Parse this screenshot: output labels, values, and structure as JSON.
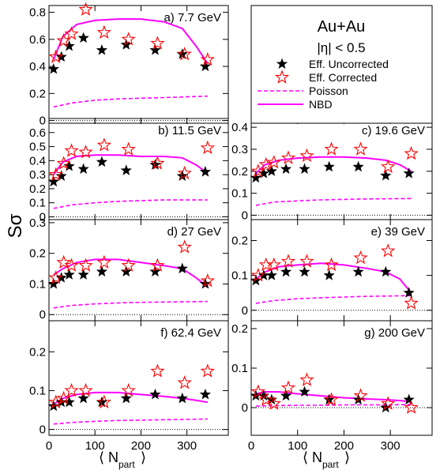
{
  "figure": {
    "ylabel": "Sσ",
    "xlabel_main": "⟨ N",
    "xlabel_sub": "part",
    "xlabel_close": "⟩",
    "legend": {
      "title": "Au+Au",
      "subtitle": "|η| < 0.5",
      "entries": [
        {
          "label": "Eff. Uncorrected",
          "symbol": "star-filled",
          "color": "#000000"
        },
        {
          "label": "Eff. Corrected",
          "symbol": "star-open",
          "color": "#ff0000"
        },
        {
          "label": "Poisson",
          "symbol": "dashed-line",
          "color": "#ff00ff"
        },
        {
          "label": "NBD",
          "symbol": "solid-line",
          "color": "#ff00ff"
        }
      ]
    },
    "colors": {
      "uncorrected": "#000000",
      "corrected": "#ff0000",
      "poisson": "#ff00ff",
      "nbd": "#ff00ff",
      "zero_line": "#000000"
    }
  },
  "chart_data": [
    {
      "type": "scatter",
      "label": "a) 7.7 GeV",
      "xlim": [
        0,
        390
      ],
      "ylim": [
        -0.02,
        0.85
      ],
      "yticks": [
        0,
        0.2,
        0.4,
        0.6,
        0.8
      ],
      "ytick_labels": [
        "0",
        "0.2",
        "0.4",
        "0.6",
        "0.8"
      ],
      "xticks": [
        0,
        100,
        200,
        300
      ],
      "xtick_labels": [],
      "series": [
        {
          "name": "Eff. Uncorrected",
          "x": [
            10,
            27,
            44,
            75,
            115,
            168,
            231,
            290,
            340
          ],
          "y": [
            0.38,
            0.47,
            0.55,
            0.61,
            0.52,
            0.56,
            0.52,
            0.49,
            0.4
          ]
        },
        {
          "name": "Eff. Corrected",
          "x": [
            15,
            32,
            49,
            80,
            120,
            173,
            236,
            295,
            345
          ],
          "y": [
            0.47,
            0.59,
            0.64,
            0.82,
            0.65,
            0.6,
            0.57,
            0.49,
            0.45
          ]
        },
        {
          "name": "Poisson",
          "x": [
            10,
            50,
            100,
            150,
            200,
            250,
            300,
            345
          ],
          "y": [
            0.1,
            0.13,
            0.15,
            0.16,
            0.165,
            0.17,
            0.175,
            0.18
          ]
        },
        {
          "name": "NBD",
          "x": [
            10,
            30,
            60,
            100,
            150,
            200,
            250,
            290,
            320,
            345
          ],
          "y": [
            0.45,
            0.62,
            0.71,
            0.74,
            0.75,
            0.75,
            0.73,
            0.68,
            0.55,
            0.42
          ]
        }
      ]
    },
    {
      "type": "scatter",
      "label": "b) 11.5 GeV",
      "xlim": [
        0,
        390
      ],
      "ylim": [
        -0.02,
        0.7
      ],
      "yticks": [
        0,
        0.1,
        0.2,
        0.3,
        0.4,
        0.5,
        0.6
      ],
      "ytick_labels": [
        "0",
        "0.1",
        "0.2",
        "0.3",
        "0.4",
        "0.5",
        "0.6"
      ],
      "xticks": [
        0,
        100,
        200,
        300
      ],
      "xtick_labels": [],
      "series": [
        {
          "name": "Eff. Uncorrected",
          "x": [
            10,
            27,
            44,
            75,
            115,
            168,
            231,
            290,
            340
          ],
          "y": [
            0.25,
            0.29,
            0.36,
            0.34,
            0.39,
            0.33,
            0.37,
            0.29,
            0.32
          ]
        },
        {
          "name": "Eff. Corrected",
          "x": [
            15,
            32,
            49,
            80,
            120,
            173,
            236,
            295,
            345
          ],
          "y": [
            0.3,
            0.38,
            0.47,
            0.46,
            0.51,
            0.48,
            0.38,
            0.31,
            0.49
          ]
        },
        {
          "name": "Poisson",
          "x": [
            10,
            50,
            100,
            150,
            200,
            250,
            300,
            345
          ],
          "y": [
            0.06,
            0.085,
            0.1,
            0.11,
            0.115,
            0.12,
            0.12,
            0.12
          ]
        },
        {
          "name": "NBD",
          "x": [
            10,
            30,
            60,
            100,
            150,
            200,
            250,
            290,
            320,
            345
          ],
          "y": [
            0.3,
            0.39,
            0.43,
            0.44,
            0.44,
            0.43,
            0.43,
            0.42,
            0.37,
            0.31
          ]
        }
      ]
    },
    {
      "type": "scatter",
      "label": "c) 19.6 GeV",
      "xlim": [
        0,
        390
      ],
      "ylim": [
        -0.02,
        0.44
      ],
      "yticks": [
        0,
        0.1,
        0.2,
        0.3,
        0.4
      ],
      "ytick_labels": [
        "0",
        "0.1",
        "0.2",
        "0.3",
        "0.4"
      ],
      "xticks": [
        0,
        100,
        200,
        300
      ],
      "xtick_labels": [],
      "series": [
        {
          "name": "Eff. Uncorrected",
          "x": [
            10,
            27,
            44,
            75,
            115,
            168,
            231,
            290,
            340
          ],
          "y": [
            0.17,
            0.19,
            0.2,
            0.21,
            0.21,
            0.22,
            0.22,
            0.18,
            0.19
          ]
        },
        {
          "name": "Eff. Corrected",
          "x": [
            15,
            32,
            49,
            80,
            120,
            173,
            236,
            295,
            345
          ],
          "y": [
            0.2,
            0.23,
            0.24,
            0.26,
            0.27,
            0.3,
            0.3,
            0.22,
            0.28
          ]
        },
        {
          "name": "Poisson",
          "x": [
            10,
            50,
            100,
            150,
            200,
            250,
            300,
            345
          ],
          "y": [
            0.045,
            0.06,
            0.065,
            0.07,
            0.072,
            0.074,
            0.075,
            0.076
          ]
        },
        {
          "name": "NBD",
          "x": [
            10,
            30,
            60,
            100,
            150,
            200,
            250,
            290,
            320,
            345
          ],
          "y": [
            0.19,
            0.23,
            0.25,
            0.26,
            0.265,
            0.265,
            0.26,
            0.25,
            0.23,
            0.2
          ]
        }
      ]
    },
    {
      "type": "scatter",
      "label": "d) 27 GeV",
      "xlim": [
        0,
        390
      ],
      "ylim": [
        -0.02,
        0.31
      ],
      "yticks": [
        0,
        0.1,
        0.2,
        0.3
      ],
      "ytick_labels": [
        "0",
        "0.1",
        "0.2",
        "0.3"
      ],
      "xticks": [
        0,
        100,
        200,
        300
      ],
      "xtick_labels": [],
      "series": [
        {
          "name": "Eff. Uncorrected",
          "x": [
            10,
            27,
            44,
            75,
            115,
            168,
            231,
            290,
            340
          ],
          "y": [
            0.1,
            0.12,
            0.13,
            0.13,
            0.14,
            0.14,
            0.14,
            0.15,
            0.1
          ]
        },
        {
          "name": "Eff. Corrected",
          "x": [
            15,
            32,
            49,
            80,
            120,
            173,
            236,
            295,
            345
          ],
          "y": [
            0.12,
            0.17,
            0.16,
            0.16,
            0.17,
            0.16,
            0.16,
            0.22,
            0.11
          ]
        },
        {
          "name": "Poisson",
          "x": [
            10,
            50,
            100,
            150,
            200,
            250,
            300,
            345
          ],
          "y": [
            0.022,
            0.03,
            0.035,
            0.038,
            0.04,
            0.041,
            0.042,
            0.043
          ]
        },
        {
          "name": "NBD",
          "x": [
            10,
            30,
            60,
            100,
            150,
            200,
            250,
            290,
            320,
            345
          ],
          "y": [
            0.13,
            0.15,
            0.17,
            0.18,
            0.18,
            0.17,
            0.16,
            0.15,
            0.12,
            0.09
          ]
        }
      ]
    },
    {
      "type": "scatter",
      "label": "e) 39 GeV",
      "xlim": [
        0,
        390
      ],
      "ylim": [
        -0.03,
        0.26
      ],
      "yticks": [
        0,
        0.1,
        0.2
      ],
      "ytick_labels": [
        "0",
        "0.1",
        "0.2"
      ],
      "xticks": [
        0,
        100,
        200,
        300
      ],
      "xtick_labels": [],
      "series": [
        {
          "name": "Eff. Uncorrected",
          "x": [
            10,
            27,
            44,
            75,
            115,
            168,
            231,
            290,
            340
          ],
          "y": [
            0.085,
            0.1,
            0.1,
            0.11,
            0.11,
            0.1,
            0.11,
            0.11,
            0.05
          ]
        },
        {
          "name": "Eff. Corrected",
          "x": [
            15,
            32,
            49,
            80,
            120,
            173,
            236,
            295,
            345
          ],
          "y": [
            0.1,
            0.13,
            0.13,
            0.14,
            0.14,
            0.13,
            0.15,
            0.17,
            0.02
          ]
        },
        {
          "name": "Poisson",
          "x": [
            10,
            50,
            100,
            150,
            200,
            250,
            300,
            345
          ],
          "y": [
            0.02,
            0.028,
            0.033,
            0.036,
            0.038,
            0.04,
            0.041,
            0.042
          ]
        },
        {
          "name": "NBD",
          "x": [
            10,
            30,
            60,
            100,
            150,
            200,
            250,
            290,
            320,
            345
          ],
          "y": [
            0.09,
            0.11,
            0.125,
            0.13,
            0.135,
            0.13,
            0.12,
            0.11,
            0.09,
            0.05
          ]
        }
      ]
    },
    {
      "type": "scatter",
      "label": "f) 62.4 GeV",
      "xlim": [
        0,
        390
      ],
      "ylim": [
        -0.015,
        0.28
      ],
      "yticks": [
        0,
        0.1,
        0.2
      ],
      "ytick_labels": [
        "0",
        "0.1",
        "0.2"
      ],
      "xticks": [
        0,
        100,
        200,
        300
      ],
      "xtick_labels": [
        "0",
        "100",
        "200",
        "300"
      ],
      "series": [
        {
          "name": "Eff. Uncorrected",
          "x": [
            10,
            27,
            44,
            75,
            115,
            168,
            231,
            290,
            340
          ],
          "y": [
            0.06,
            0.07,
            0.07,
            0.08,
            0.07,
            0.08,
            0.09,
            0.08,
            0.09
          ]
        },
        {
          "name": "Eff. Corrected",
          "x": [
            15,
            32,
            49,
            80,
            120,
            173,
            236,
            295,
            345
          ],
          "y": [
            0.07,
            0.08,
            0.1,
            0.1,
            0.07,
            0.1,
            0.15,
            0.12,
            0.15
          ]
        },
        {
          "name": "Poisson",
          "x": [
            10,
            50,
            100,
            150,
            200,
            250,
            300,
            345
          ],
          "y": [
            0.014,
            0.018,
            0.021,
            0.023,
            0.024,
            0.025,
            0.026,
            0.027
          ]
        },
        {
          "name": "NBD",
          "x": [
            10,
            30,
            60,
            100,
            150,
            200,
            250,
            290,
            320,
            345
          ],
          "y": [
            0.065,
            0.08,
            0.09,
            0.095,
            0.095,
            0.09,
            0.085,
            0.08,
            0.075,
            0.07
          ]
        }
      ]
    },
    {
      "type": "scatter",
      "label": "g) 200 GeV",
      "xlim": [
        0,
        390
      ],
      "ylim": [
        -0.07,
        0.22
      ],
      "yticks": [
        0,
        0.1,
        0.2
      ],
      "ytick_labels": [
        "0",
        "0.1",
        "0.2"
      ],
      "xticks": [
        0,
        100,
        200,
        300
      ],
      "xtick_labels": [
        "0",
        "100",
        "200",
        "300"
      ],
      "series": [
        {
          "name": "Eff. Uncorrected",
          "x": [
            10,
            27,
            44,
            75,
            115,
            168,
            231,
            290,
            340
          ],
          "y": [
            0.03,
            0.03,
            0.02,
            0.03,
            0.04,
            0.02,
            0.02,
            0.0,
            0.02
          ]
        },
        {
          "name": "Eff. Corrected",
          "x": [
            15,
            32,
            49,
            80,
            120,
            173,
            236,
            295,
            345
          ],
          "y": [
            0.04,
            0.02,
            0.01,
            0.05,
            0.07,
            0.02,
            0.03,
            0.01,
            0.0
          ]
        },
        {
          "name": "Poisson",
          "x": [
            10,
            50,
            100,
            150,
            200,
            250,
            300,
            345
          ],
          "y": [
            0.004,
            0.005,
            0.006,
            0.006,
            0.007,
            0.007,
            0.007,
            0.008
          ]
        },
        {
          "name": "NBD",
          "x": [
            10,
            30,
            60,
            100,
            150,
            200,
            250,
            290,
            320,
            345
          ],
          "y": [
            0.035,
            0.04,
            0.04,
            0.035,
            0.03,
            0.025,
            0.022,
            0.02,
            0.018,
            0.015
          ]
        }
      ]
    }
  ]
}
